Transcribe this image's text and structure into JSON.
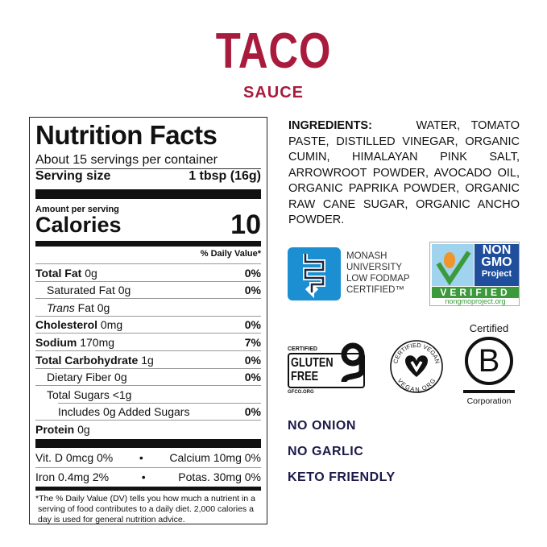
{
  "product": {
    "name": "TACO",
    "subtitle": "SAUCE"
  },
  "nutrition": {
    "title": "Nutrition Facts",
    "servings": "About 15 servings per container",
    "serving_size_label": "Serving size",
    "serving_size": "1 tbsp (16g)",
    "amount_per_serving": "Amount per serving",
    "calories_label": "Calories",
    "calories": "10",
    "dv_header": "% Daily Value*",
    "rows": [
      {
        "label": "Total Fat",
        "amount": "0g",
        "dv": "0%"
      },
      {
        "label": "Saturated Fat",
        "amount": "0g",
        "dv": "0%"
      },
      {
        "label": "Trans",
        "amount": "Fat 0g",
        "dv": ""
      },
      {
        "label": "Cholesterol",
        "amount": "0mg",
        "dv": "0%"
      },
      {
        "label": "Sodium",
        "amount": "170mg",
        "dv": "7%"
      },
      {
        "label": "Total Carbohydrate",
        "amount": "1g",
        "dv": "0%"
      },
      {
        "label": "Dietary Fiber",
        "amount": "0g",
        "dv": "0%"
      },
      {
        "label": "Total Sugars",
        "amount": "<1g",
        "dv": ""
      },
      {
        "label": "Includes 0g Added Sugars",
        "amount": "",
        "dv": "0%"
      },
      {
        "label": "Protein",
        "amount": "0g",
        "dv": ""
      }
    ],
    "vitamins": [
      {
        "left": "Vit. D 0mcg 0%",
        "right": "Calcium 10mg 0%"
      },
      {
        "left": "Iron 0.4mg 2%",
        "right": "Potas. 30mg 0%"
      }
    ],
    "footnote": "*The % Daily Value (DV) tells you how much a nutrient in a serving of food contributes to a daily diet. 2,000 calories a day is used for general nutrition advice."
  },
  "ingredients": {
    "label": "INGREDIENTS:",
    "text": "WATER, TOMATO PASTE, DISTILLED VINEGAR, ORGANIC CUMIN, HIMALAYAN PINK SALT, ARROWROOT POWDER, AVOCADO OIL, ORGANIC PAPRIKA POWDER, ORGANIC RAW CANE SUGAR, ORGANIC ANCHO POWDER."
  },
  "certifications": {
    "monash": [
      "MONASH",
      "UNIVERSITY",
      "LOW FODMAP",
      "CERTIFIED™"
    ],
    "nongmo": {
      "line1": "NON",
      "line2": "GMO",
      "line3": "Project",
      "verified": "VERIFIED",
      "url": "nongmoproject.org"
    },
    "gluten": {
      "top": "CERTIFIED",
      "l1": "GLUTEN",
      "l2": "FREE",
      "url": "GFCO.ORG"
    },
    "vegan": {
      "top": "CERTIFIED VEGAN",
      "bottom": "VEGAN.ORG"
    },
    "bcorp": {
      "top": "Certified",
      "bottom": "Corporation"
    }
  },
  "claims": [
    "NO ONION",
    "NO GARLIC",
    "KETO FRIENDLY"
  ],
  "colors": {
    "brand": "#a81b3d",
    "claims": "#1c1a4a",
    "monash": "#1b8fd2",
    "nongmo_green": "#3c9a3c",
    "nongmo_blue": "#1f4e9c"
  }
}
